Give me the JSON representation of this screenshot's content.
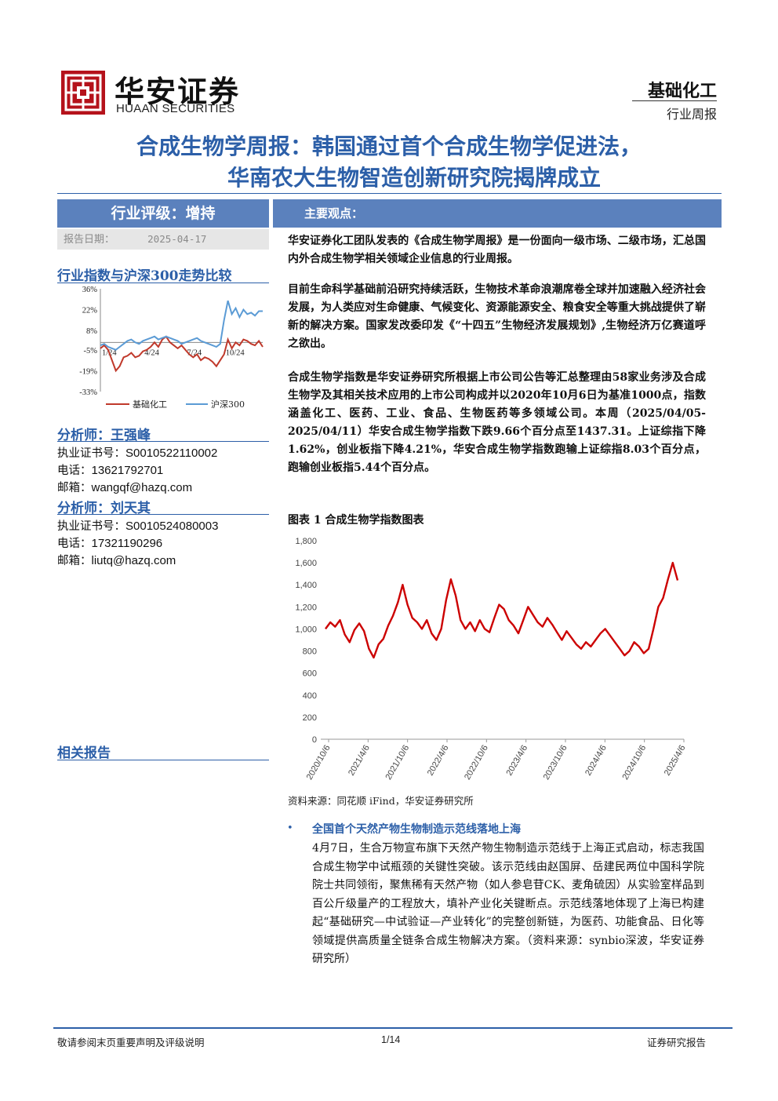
{
  "header": {
    "logo_cn": "华安证券",
    "logo_en": "HUAAN SECURITIES",
    "sector": "基础化工",
    "report_type": "行业周报"
  },
  "title": {
    "line1": "合成生物学周报：韩国通过首个合成生物学促进法，",
    "line2": "华南农大生物智造创新研究院揭牌成立"
  },
  "left": {
    "rating": "行业评级：增持",
    "date_label": "报告日期：",
    "date_value": "2025-04-17",
    "trend_title": "行业指数与沪深300走势比较",
    "analyst1": {
      "title": "分析师：王强峰",
      "cert_label": "执业证书号：",
      "cert": "S0010522110002",
      "phone_label": "电话：",
      "phone": "13621792701",
      "email_label": "邮箱：",
      "email": "wangqf@hazq.com"
    },
    "analyst2": {
      "title": "分析师：刘天其",
      "cert_label": "执业证书号：",
      "cert": "S0010524080003",
      "phone_label": "电话：",
      "phone": "17321190296",
      "email_label": "邮箱：",
      "email": "liutq@hazq.com"
    },
    "related": "相关报告"
  },
  "main": {
    "view_title": "主要观点：",
    "para1": "华安证券化工团队发表的《合成生物学周报》是一份面向一级市场、二级市场，汇总国内外合成生物学相关领域企业信息的行业周报。",
    "para2": "目前生命科学基础前沿研究持续活跃，生物技术革命浪潮席卷全球并加速融入经济社会发展，为人类应对生命健康、气候变化、资源能源安全、粮食安全等重大挑战提供了崭新的解决方案。国家发改委印发《“十四五”生物经济发展规划》,生物经济万亿赛道呼之欲出。",
    "para3": "合成生物学指数是华安证券研究所根据上市公司公告等汇总整理由58家业务涉及合成生物学及其相关技术应用的上市公司构成并以2020年10月6日为基准1000点，指数涵盖化工、医药、工业、食品、生物医药等多领域公司。本周（2025/04/05-2025/04/11）华安合成生物学指数下跌9.66个百分点至1437.31。上证综指下降1.62%，创业板指下降4.21%，华安合成生物学指数跑输上证综指8.03个百分点，跑输创业板指5.44个百分点。",
    "figure_title": "图表 1 合成生物学指数图表",
    "figure_source": "资料来源：同花顺 iFind，华安证券研究所",
    "news_title": "全国首个天然产物生物制造示范线落地上海",
    "news_body": "4月7日，生合万物宣布旗下天然产物生物制造示范线于上海正式启动，标志我国合成生物学中试瓶颈的关键性突破。该示范线由赵国屏、岳建民两位中国科学院院士共同领衔，聚焦稀有天然产物（如人参皂苷CK、麦角硫因）从实验室样品到百公斤级量产的工程放大，填补产业化关键断点。示范线落地体现了上海已构建起“基础研究—中试验证—产业转化”的完整创新链，为医药、功能食品、日化等领域提供高质量全链条合成生物解决方案。（资料来源：synbio深波，华安证券研究所）"
  },
  "footer": {
    "left": "敬请参阅末页重要声明及评级说明",
    "page": "1/14",
    "right": "证券研究报告"
  },
  "chart_data": [
    {
      "type": "line",
      "title": "行业指数与沪深300走势比较",
      "x_tick_labels": [
        "1/24",
        "4/24",
        "7/24",
        "10/24"
      ],
      "y_tick_labels": [
        "36%",
        "22%",
        "8%",
        "-5%",
        "-19%",
        "-33%"
      ],
      "ylim": [
        -33,
        36
      ],
      "legend_placement": "bottom",
      "series": [
        {
          "name": "基础化工",
          "color": "#c0392b",
          "values": [
            -4,
            -2,
            -5,
            -12,
            -19,
            -16,
            -10,
            -9,
            -7,
            -10,
            -9,
            -6,
            -5,
            -3,
            0,
            -3,
            2,
            4,
            0,
            -2,
            -4,
            -2,
            -5,
            -8,
            -10,
            -8,
            -12,
            -10,
            -11,
            -13,
            -16,
            -12,
            -8,
            2,
            -4,
            0,
            -2,
            2,
            1,
            -1,
            -2,
            1,
            -3
          ]
        },
        {
          "name": "沪深300",
          "color": "#5b9bd5",
          "values": [
            -2,
            -1,
            -3,
            -4,
            -5,
            -3,
            -1,
            1,
            2,
            0,
            -1,
            1,
            2,
            3,
            4,
            2,
            3,
            4,
            3,
            2,
            1,
            -1,
            0,
            1,
            2,
            3,
            1,
            0,
            -1,
            -2,
            -3,
            -1,
            15,
            28,
            19,
            23,
            17,
            22,
            19,
            20,
            18,
            21,
            21
          ]
        }
      ]
    },
    {
      "type": "line",
      "title": "图表 1 合成生物学指数图表",
      "x_tick_labels": [
        "2020/10/6",
        "2021/4/6",
        "2021/10/6",
        "2022/4/6",
        "2022/10/6",
        "2023/4/6",
        "2023/10/6",
        "2024/4/6",
        "2024/10/6",
        "2025/4/6"
      ],
      "y_tick_labels": [
        "0",
        "200",
        "400",
        "600",
        "800",
        "1,000",
        "1,200",
        "1,400",
        "1,600",
        "1,800"
      ],
      "ylim": [
        0,
        1800
      ],
      "series": [
        {
          "name": "合成生物学指数",
          "color": "#cc0000",
          "values": [
            1000,
            1060,
            1020,
            1080,
            950,
            880,
            990,
            1050,
            980,
            820,
            740,
            860,
            910,
            1030,
            1120,
            1240,
            1400,
            1220,
            1100,
            1060,
            1000,
            1080,
            960,
            900,
            1000,
            1260,
            1450,
            1300,
            1080,
            1000,
            1060,
            980,
            1080,
            1000,
            970,
            1100,
            1220,
            1180,
            1080,
            1030,
            960,
            1080,
            1200,
            1130,
            1060,
            1020,
            1100,
            1040,
            970,
            900,
            980,
            920,
            860,
            820,
            880,
            840,
            900,
            960,
            1000,
            940,
            880,
            820,
            760,
            800,
            880,
            840,
            780,
            820,
            1000,
            1200,
            1280,
            1450,
            1600,
            1440
          ]
        }
      ]
    }
  ]
}
